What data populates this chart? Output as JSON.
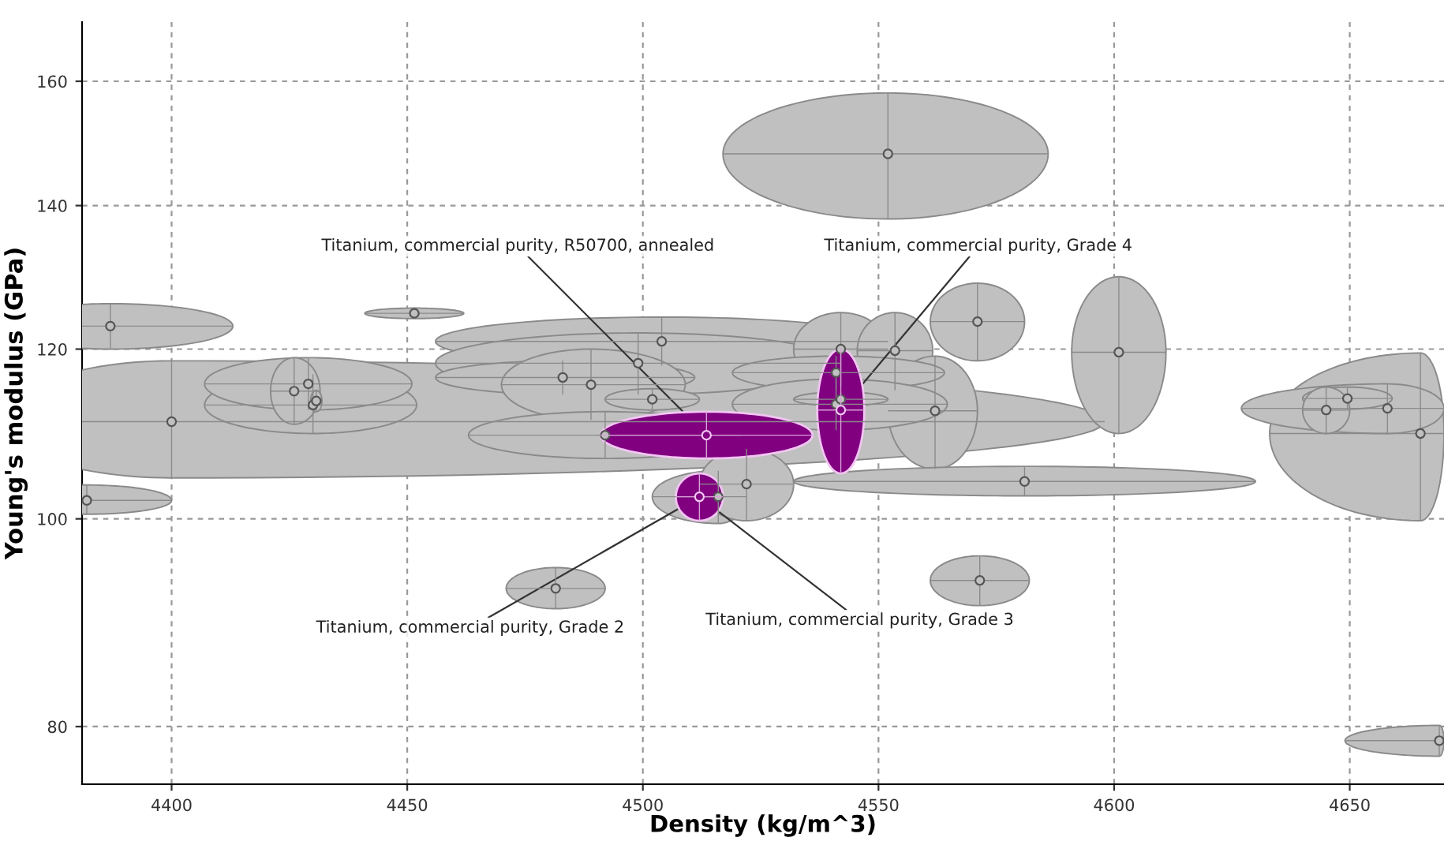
{
  "chart_data": {
    "type": "scatter",
    "xlabel": "Density (kg/m^3)",
    "ylabel": "Young's modulus (GPa)",
    "xlim": [
      4381,
      4670
    ],
    "ylim": [
      75.2,
      170.5
    ],
    "log": "y",
    "xticks": [
      4400,
      4450,
      4500,
      4550,
      4600,
      4650
    ],
    "yticks": [
      80,
      100,
      120,
      140,
      160
    ],
    "grid": true,
    "marker": "circle",
    "series": [
      {
        "color": "#c0c0c0",
        "x": [
          4552,
          4387,
          4400,
          4382,
          4430,
          4429,
          4426,
          4430.7,
          4451.5,
          4504,
          4499,
          4483,
          4489,
          4502,
          4492,
          4516,
          4522,
          4542,
          4553.5,
          4571,
          4601,
          4562,
          4541,
          4541,
          4542,
          4581,
          4665,
          4658,
          4649.5,
          4645,
          4571.5,
          4481.5,
          4669
        ],
        "values": [
          148,
          123,
          111,
          102,
          113,
          115.6,
          114.7,
          113.5,
          124.7,
          121,
          118.2,
          116.4,
          115.5,
          113.7,
          109.4,
          102.4,
          103.8,
          120,
          119.8,
          123.6,
          119.6,
          112.3,
          117,
          113.1,
          113.7,
          104.1,
          109.6,
          112.6,
          113.8,
          112.4,
          93.6,
          92.8,
          78.8
        ],
        "xerrors": [
          [
            4517,
            4586
          ],
          [
            4364,
            4413
          ],
          [
            4364,
            4598
          ],
          [
            4364,
            4400
          ],
          [
            4407,
            4452
          ],
          [
            4407,
            4451
          ],
          [
            4421,
            4431.5
          ],
          [
            4429.5,
            4431.9
          ],
          [
            4441,
            4462
          ],
          [
            4456,
            4552
          ],
          [
            4456,
            4542
          ],
          [
            4456,
            4511
          ],
          [
            4470,
            4509
          ],
          [
            4492,
            4512
          ],
          [
            4463,
            4521
          ],
          [
            4502,
            4522
          ],
          [
            4512,
            4532
          ],
          [
            4532,
            4552
          ],
          [
            4545.5,
            4561.5
          ],
          [
            4561,
            4581
          ],
          [
            4591,
            4611
          ],
          [
            4552,
            4571
          ],
          [
            4519,
            4564
          ],
          [
            4519,
            4564.6
          ],
          [
            4532,
            4552
          ],
          [
            4532,
            4630
          ],
          [
            4633,
            4670
          ],
          [
            4627,
            4670
          ],
          [
            4640,
            4659
          ],
          [
            4640,
            4650
          ],
          [
            4561,
            4582
          ],
          [
            4471,
            4492
          ],
          [
            4649,
            4670
          ]
        ],
        "errors": [
          [
            138,
            158
          ],
          [
            120,
            126
          ],
          [
            104.5,
            118.5
          ],
          [
            100.5,
            103.7
          ],
          [
            109.6,
            116.8
          ],
          [
            112.4,
            118.9
          ],
          [
            110.7,
            118.9
          ],
          [
            112.2,
            114.8
          ],
          [
            124,
            125.4
          ],
          [
            117.9,
            124.2
          ],
          [
            114.3,
            122.1
          ],
          [
            114.3,
            118.5
          ],
          [
            111.2,
            120
          ],
          [
            112.4,
            115
          ],
          [
            106.7,
            112.2
          ],
          [
            99.5,
            105.3
          ],
          [
            99.8,
            107.8
          ],
          [
            115.2,
            124.8
          ],
          [
            114.8,
            124.8
          ],
          [
            118.5,
            128.8
          ],
          [
            109.6,
            129.7
          ],
          [
            105.5,
            119.1
          ],
          [
            114.8,
            119.1
          ],
          [
            110,
            116.2
          ],
          [
            112.9,
            114.6
          ],
          [
            102.5,
            105.8
          ],
          [
            99.8,
            119.5
          ],
          [
            109.6,
            115.6
          ],
          [
            112.5,
            115.2
          ],
          [
            109.6,
            115.2
          ],
          [
            91.1,
            96.1
          ],
          [
            90.8,
            94.9
          ],
          [
            77.5,
            80.1
          ]
        ]
      },
      {
        "color": "#800080",
        "x": [
          4513.5,
          4542,
          4512
        ],
        "values": [
          109.4,
          112.4,
          102.4
        ],
        "xerrors": [
          [
            4491,
            4536
          ],
          [
            4537,
            4547
          ],
          [
            4507,
            4517
          ]
        ],
        "errors": [
          [
            106.7,
            112.2
          ],
          [
            105,
            120
          ],
          [
            99.8,
            105
          ]
        ]
      }
    ],
    "annotations": [
      {
        "text": "Titanium, commercial purity, R50700, annealed",
        "x": 4513.5,
        "y": 109.4
      },
      {
        "text": "Titanium, commercial purity, Grade 4",
        "x": 4542,
        "y": 112.4
      },
      {
        "text": "Titanium, commercial purity, Grade 2",
        "x": 4512,
        "y": 102.4
      },
      {
        "text": "Titanium, commercial purity, Grade 3",
        "x": 4512,
        "y": 102.4
      }
    ]
  }
}
